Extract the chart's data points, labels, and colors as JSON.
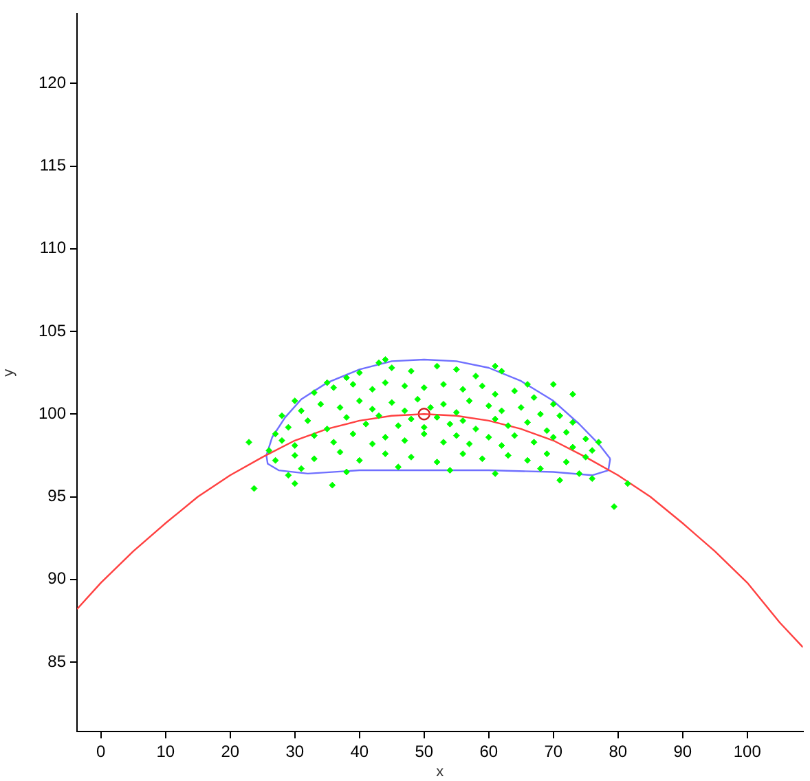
{
  "chart_data": {
    "type": "scatter",
    "xlabel": "x",
    "ylabel": "y",
    "xlim": [
      -3.7,
      108.6
    ],
    "ylim": [
      80.8,
      124.2
    ],
    "xticks": [
      0,
      10,
      20,
      30,
      40,
      50,
      60,
      70,
      80,
      90,
      100
    ],
    "yticks": [
      85,
      90,
      95,
      100,
      105,
      110,
      115,
      120
    ],
    "grid": false,
    "legend": false,
    "series": [
      {
        "type": "scatter",
        "color": "#00ff00",
        "marker": "diamond",
        "x": [
          40,
          43,
          45,
          48,
          52,
          55,
          58,
          62,
          38,
          35,
          66,
          30,
          33,
          36,
          39,
          42,
          44,
          47,
          50,
          53,
          56,
          59,
          61,
          64,
          67,
          70,
          28,
          31,
          34,
          37,
          40,
          42,
          45,
          47,
          49,
          51,
          53,
          55,
          57,
          60,
          62,
          65,
          68,
          71,
          73,
          27,
          29,
          32,
          35,
          38,
          41,
          43,
          46,
          48,
          50,
          52,
          54,
          56,
          58,
          61,
          63,
          66,
          69,
          72,
          75,
          26,
          28,
          30,
          33,
          36,
          39,
          42,
          44,
          47,
          50,
          53,
          55,
          57,
          60,
          62,
          64,
          67,
          70,
          73,
          76,
          77,
          27,
          30,
          33,
          37,
          40,
          44,
          48,
          52,
          56,
          59,
          63,
          66,
          69,
          72,
          75,
          29,
          31,
          38,
          46,
          54,
          61,
          68,
          71,
          74,
          76,
          22.9,
          23.7,
          30,
          35.8,
          81.5,
          79.4,
          44,
          61,
          70,
          73
        ],
        "values": [
          102.5,
          103.1,
          102.8,
          102.6,
          102.9,
          102.7,
          102.3,
          102.6,
          102.2,
          101.9,
          101.8,
          100.8,
          101.3,
          101.6,
          101.8,
          101.5,
          101.9,
          101.7,
          101.6,
          101.8,
          101.5,
          101.7,
          101.2,
          101.4,
          101.0,
          100.6,
          99.9,
          100.2,
          100.6,
          100.4,
          100.8,
          100.3,
          100.7,
          100.2,
          100.9,
          100.4,
          100.6,
          100.1,
          100.8,
          100.5,
          100.2,
          100.4,
          100.0,
          99.9,
          99.5,
          98.8,
          99.2,
          99.6,
          99.1,
          99.8,
          99.4,
          99.9,
          99.3,
          99.7,
          99.2,
          99.8,
          99.4,
          99.6,
          99.1,
          99.7,
          99.3,
          99.5,
          99.0,
          98.9,
          98.5,
          97.8,
          98.4,
          98.1,
          98.7,
          98.3,
          98.8,
          98.2,
          98.6,
          98.4,
          98.8,
          98.3,
          98.7,
          98.2,
          98.6,
          98.1,
          98.7,
          98.3,
          98.6,
          98.0,
          97.8,
          98.3,
          97.2,
          97.5,
          97.3,
          97.7,
          97.2,
          97.6,
          97.4,
          97.1,
          97.6,
          97.3,
          97.5,
          97.2,
          97.6,
          97.1,
          97.4,
          96.3,
          96.7,
          96.5,
          96.8,
          96.6,
          96.4,
          96.7,
          96.0,
          96.4,
          96.1,
          98.3,
          95.5,
          95.8,
          95.7,
          95.8,
          94.4,
          103.3,
          102.9,
          101.8,
          101.2
        ]
      },
      {
        "type": "line",
        "color": "#ff4040",
        "marker": "none",
        "line_style": "solid",
        "x": [
          -3.7,
          0,
          5,
          10,
          15,
          20,
          25,
          30,
          35,
          40,
          45,
          50,
          55,
          60,
          65,
          70,
          75,
          80,
          85,
          90,
          95,
          100,
          105,
          108.6
        ],
        "values": [
          88.2,
          89.8,
          91.7,
          93.4,
          95.0,
          96.3,
          97.4,
          98.4,
          99.1,
          99.6,
          99.9,
          100,
          99.9,
          99.6,
          99.1,
          98.4,
          97.4,
          96.3,
          95.0,
          93.4,
          91.7,
          89.8,
          87.4,
          85.9
        ]
      },
      {
        "type": "line",
        "color": "#6f6fff",
        "marker": "none",
        "line_style": "solid",
        "x": [
          25.6,
          26.5,
          28.5,
          31,
          35,
          40,
          45,
          50,
          55,
          60,
          65,
          70,
          74,
          77,
          78.8
        ],
        "values": [
          97.5,
          98.6,
          99.8,
          100.9,
          101.9,
          102.7,
          103.2,
          103.3,
          103.2,
          102.8,
          102.0,
          100.8,
          99.4,
          98.2,
          97.3
        ]
      },
      {
        "type": "line",
        "color": "#6f6fff",
        "marker": "none",
        "line_style": "solid",
        "x": [
          25.6,
          25.8,
          27.5,
          32,
          40,
          50,
          60,
          70,
          76,
          78.5,
          78.8
        ],
        "values": [
          97.5,
          97.0,
          96.6,
          96.4,
          96.6,
          96.6,
          96.6,
          96.5,
          96.3,
          96.6,
          97.3
        ]
      },
      {
        "type": "scatter",
        "color": "#cc2020",
        "marker": "circle",
        "x": [
          50
        ],
        "values": [
          100
        ]
      }
    ]
  }
}
